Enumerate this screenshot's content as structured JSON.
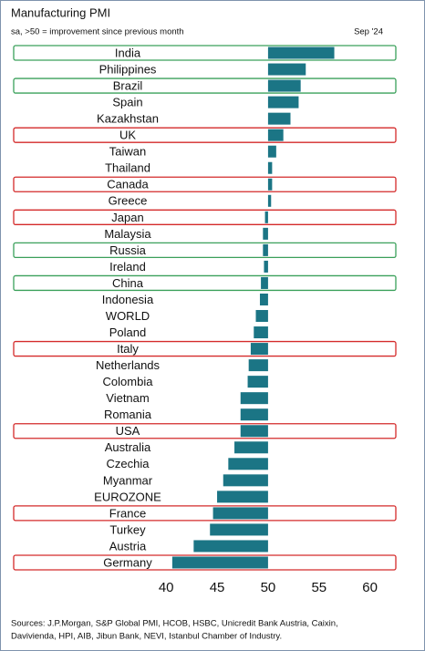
{
  "chart_data": {
    "type": "hbar",
    "title": "Manufacturing PMI",
    "subtitle": "sa, >50 = improvement since previous month",
    "date_label": "Sep '24",
    "categories": [
      "India",
      "Philippines",
      "Brazil",
      "Spain",
      "Kazakhstan",
      "UK",
      "Taiwan",
      "Thailand",
      "Canada",
      "Greece",
      "Japan",
      "Malaysia",
      "Russia",
      "Ireland",
      "China",
      "Indonesia",
      "WORLD",
      "Poland",
      "Italy",
      "Netherlands",
      "Colombia",
      "Vietnam",
      "Romania",
      "USA",
      "Australia",
      "Czechia",
      "Myanmar",
      "EUROZONE",
      "France",
      "Turkey",
      "Austria",
      "Germany"
    ],
    "values": [
      56.5,
      53.7,
      53.2,
      53.0,
      52.2,
      51.5,
      50.8,
      50.4,
      50.4,
      50.3,
      49.7,
      49.5,
      49.5,
      49.6,
      49.3,
      49.2,
      48.8,
      48.6,
      48.3,
      48.1,
      48.0,
      47.3,
      47.3,
      47.3,
      46.7,
      46.1,
      45.6,
      45.0,
      44.6,
      44.3,
      42.7,
      40.6
    ],
    "base": 50,
    "color": "#1b7585",
    "category_outline": [
      "#3aa05a",
      null,
      "#3aa05a",
      null,
      null,
      "#d42a2a",
      null,
      null,
      "#d42a2a",
      null,
      "#d42a2a",
      null,
      "#3aa05a",
      null,
      "#3aa05a",
      null,
      null,
      null,
      "#d42a2a",
      null,
      null,
      null,
      null,
      "#d42a2a",
      null,
      null,
      null,
      null,
      "#d42a2a",
      null,
      null,
      "#d42a2a"
    ],
    "xlim": [
      39,
      62
    ],
    "xticks": [
      40,
      45,
      50,
      55,
      60
    ],
    "grid": false,
    "source_lines": [
      "Sources: J.P.Morgan, S&P Global PMI, HCOB, HSBC, Unicredit Bank Austria, Caixin,",
      "Davivienda, HPI, AIB, Jibun Bank, NEVI, Istanbul Chamber of Industry."
    ]
  }
}
